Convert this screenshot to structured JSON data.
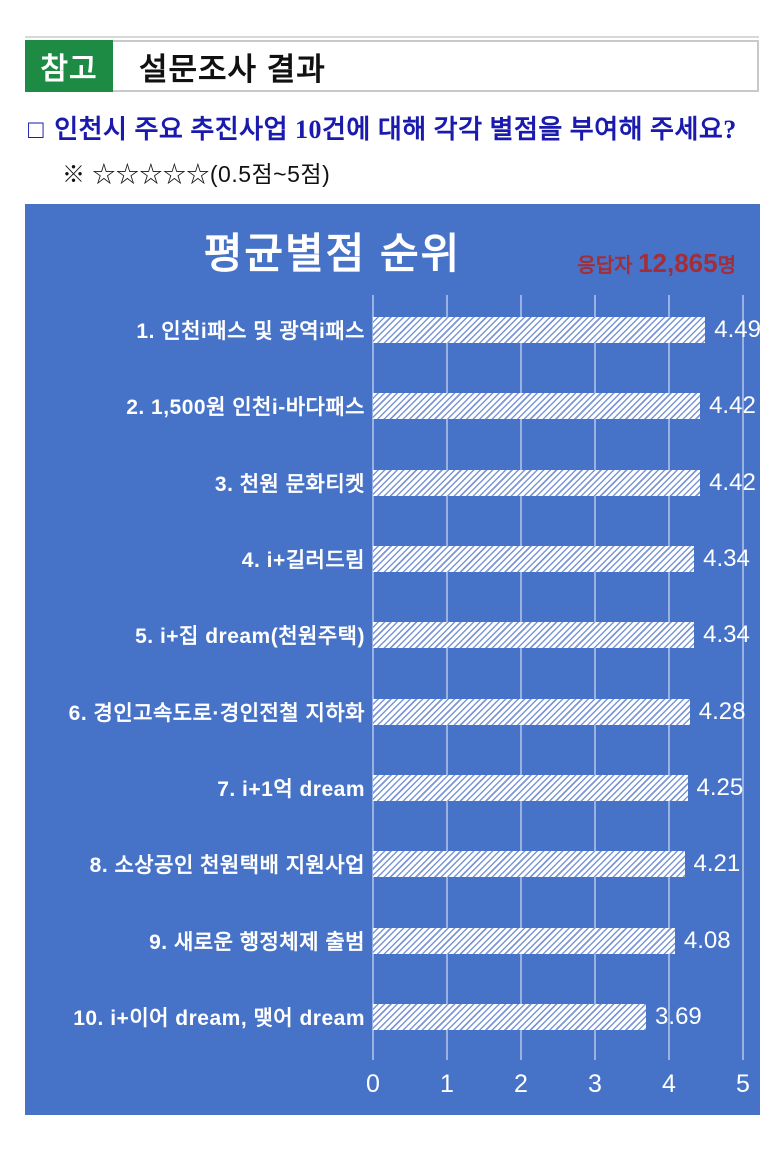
{
  "header": {
    "badge": "참고",
    "title": "설문조사 결과"
  },
  "question": {
    "bullet": "□",
    "text": "인천시 주요 추진사업 10건에 대해 각각 별점을 부여해 주세요?",
    "note": "※ ☆☆☆☆☆(0.5점~5점)"
  },
  "chart": {
    "title": "평균별점 순위",
    "respondents_label": "응답자 ",
    "respondents_count": "12,865",
    "respondents_suffix": "명"
  },
  "chart_data": {
    "type": "bar",
    "orientation": "horizontal",
    "title": "평균별점 순위",
    "categories": [
      "1. 인천i패스 및 광역i패스",
      "2. 1,500원 인천i-바다패스",
      "3. 천원 문화티켓",
      "4. i+길러드림",
      "5. i+집 dream(천원주택)",
      "6. 경인고속도로·경인전철 지하화",
      "7. i+1억 dream",
      "8. 소상공인 천원택배 지원사업",
      "9. 새로운 행정체제 출범",
      "10. i+이어 dream, 맺어 dream"
    ],
    "values": [
      4.49,
      4.42,
      4.42,
      4.34,
      4.34,
      4.28,
      4.25,
      4.21,
      4.08,
      3.69
    ],
    "value_labels": [
      "4.49",
      "4.42",
      "4.42",
      "4.34",
      "4.34",
      "4.28",
      "4.25",
      "4.21",
      "4.08",
      "3.69"
    ],
    "xlabel": "",
    "ylabel": "",
    "xlim": [
      0,
      5
    ],
    "x_ticks": [
      0,
      1,
      2,
      3,
      4,
      5
    ],
    "grid": true,
    "legend": "none",
    "bar_style": "white-diagonal-hatch",
    "colors": {
      "panel_bg": "#4673c8",
      "bar_hatch_line": "#7b97d8",
      "label_text": "#ffffff",
      "respondents_text": "#a32e38",
      "badge_green": "#1e8b44",
      "question_blue": "#1a1aae"
    }
  }
}
